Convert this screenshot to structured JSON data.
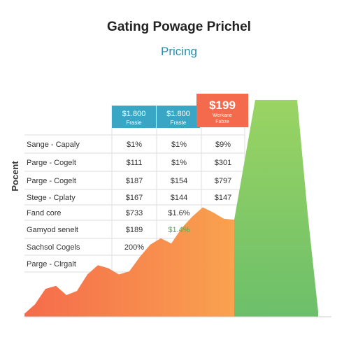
{
  "title": "Gating Powage Prichel",
  "subtitle": "Pricing",
  "ylabel": "Pocent",
  "colors": {
    "teal": "#3aa6c6",
    "coral": "#f36a4c",
    "orange_area": "#f7894e",
    "green_area": "#8fcd62",
    "grid": "#dddddd",
    "text": "#333333",
    "green_text": "#4caf50"
  },
  "tiers": [
    {
      "price": "$1.800",
      "label": "Frasie",
      "style": "teal"
    },
    {
      "price": "$1.800",
      "label": "Fraste",
      "style": "teal"
    },
    {
      "price": "$199",
      "label": "Werkane\nFabze",
      "style": "coral"
    }
  ],
  "table": {
    "rows": [
      {
        "label": "Sange - Capaly",
        "cells": [
          "$1%",
          "$1%",
          "$9%"
        ]
      },
      {
        "label": "Parge - Cogelt",
        "cells": [
          "$111",
          "$1%",
          "$301"
        ]
      },
      {
        "label": "Parge - Cogelt",
        "cells": [
          "$187",
          "$154",
          "$797"
        ]
      },
      {
        "label": "Stege - Cplaty",
        "cells": [
          "$167",
          "$144",
          "$147"
        ]
      },
      {
        "label": "Fand core",
        "cells": [
          "$733",
          "$1.6%",
          ""
        ]
      },
      {
        "label": "Gamyod senelt",
        "cells": [
          "$189",
          "$1.4%",
          ""
        ]
      },
      {
        "label": "Sachsol Cogels",
        "cells": [
          "200%",
          "",
          ""
        ]
      },
      {
        "label": "Parge - Clrgalt",
        "cells": [
          "",
          "",
          ""
        ]
      }
    ],
    "highlight": {
      "row": 5,
      "col": 1,
      "color": "green_text"
    }
  },
  "chart_data": {
    "type": "area",
    "title": "Gating Powage Prichel",
    "subtitle": "Pricing",
    "ylabel": "Pocent",
    "series": [
      {
        "x": [
          0,
          0.5,
          1,
          1.5,
          2,
          2.5,
          3,
          3.5,
          4,
          4.5,
          5,
          5.5,
          6,
          6.5,
          7,
          7.5,
          8,
          8.5,
          9,
          9.5,
          10
        ],
        "values": [
          3,
          12,
          27,
          30,
          21,
          25,
          41,
          50,
          47,
          41,
          44,
          58,
          70,
          76,
          71,
          86,
          97,
          106,
          101,
          95,
          94
        ]
      },
      {
        "x": [
          10,
          11,
          12,
          13,
          13.5,
          14
        ],
        "values": [
          94,
          210,
          210,
          210,
          100,
          5
        ]
      }
    ],
    "xlim": [
      0,
      14
    ],
    "ylim": [
      0,
      210
    ],
    "grid": true
  }
}
